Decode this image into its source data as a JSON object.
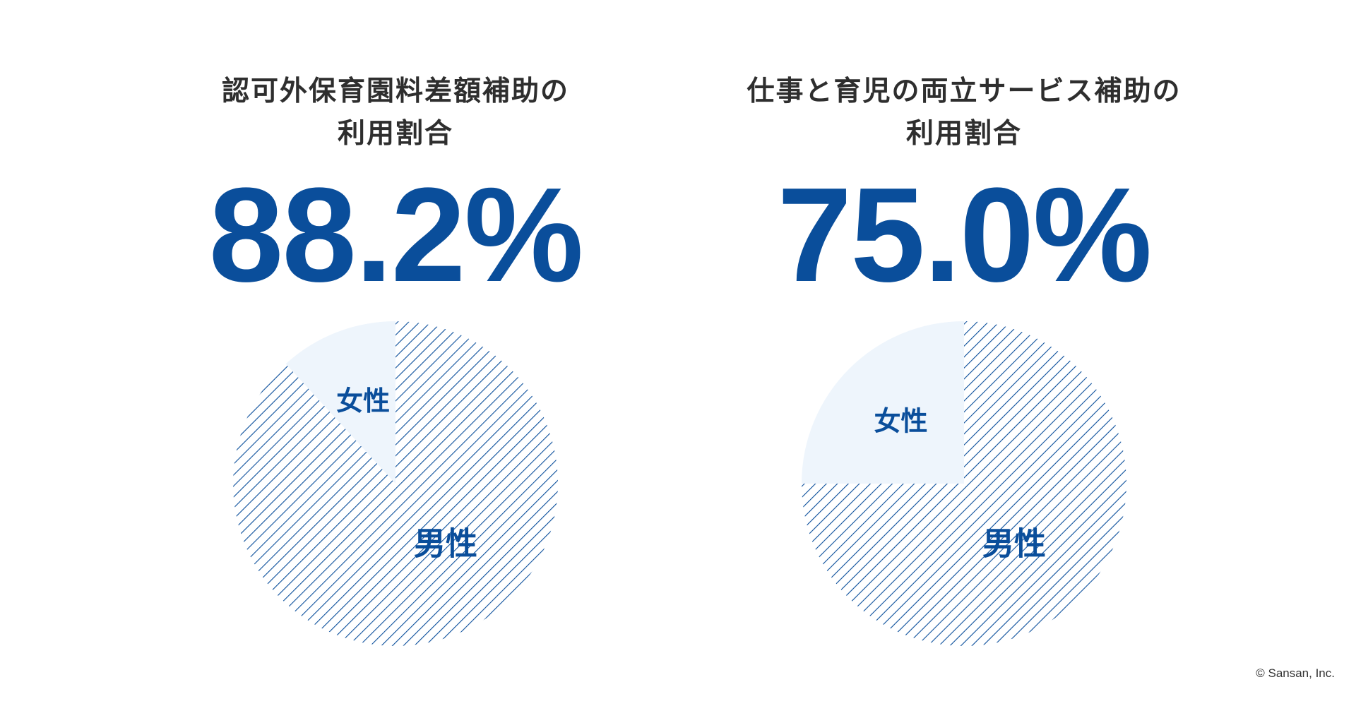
{
  "panels": [
    {
      "title_lines": [
        "認可外保育園料差額補助の",
        "利用割合"
      ],
      "percent_label": "88.2%"
    },
    {
      "title_lines": [
        "仕事と育児の両立サービス補助の",
        "利用割合"
      ],
      "percent_label": "75.0%"
    }
  ],
  "copyright": "© Sansan, Inc.",
  "colors": {
    "accent": "#0a4e9b",
    "female_fill": "#eef5fc",
    "hatch": "#0a4e9b",
    "title_text": "#2e2e2e"
  },
  "chart_data": [
    {
      "type": "pie",
      "title": "認可外保育園料差額補助の利用割合",
      "categories": [
        "男性",
        "女性"
      ],
      "values": [
        88.2,
        11.8
      ],
      "unit": "%"
    },
    {
      "type": "pie",
      "title": "仕事と育児の両立サービス補助の利用割合",
      "categories": [
        "男性",
        "女性"
      ],
      "values": [
        75.0,
        25.0
      ],
      "unit": "%"
    }
  ]
}
